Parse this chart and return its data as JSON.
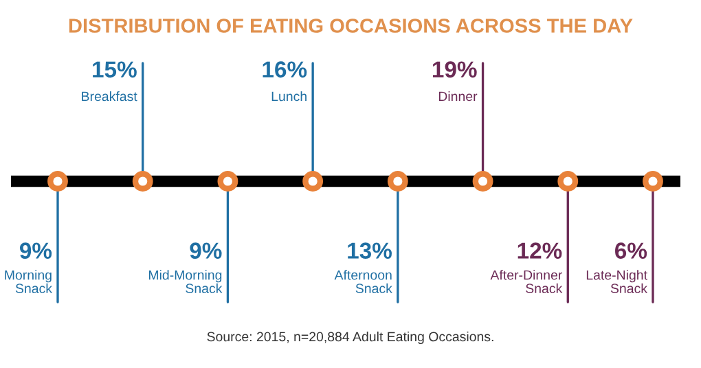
{
  "chart_data": {
    "type": "other",
    "title": "DISTRIBUTION OF EATING OCCASIONS ACROSS THE DAY",
    "categories": [
      "Morning\nSnack",
      "Breakfast",
      "Mid-Morning\nSnack",
      "Lunch",
      "Afternoon\nSnack",
      "Dinner",
      "After-Dinner\nSnack",
      "Late-Night\nSnack"
    ],
    "values": [
      9,
      15,
      9,
      16,
      13,
      19,
      12,
      6
    ],
    "value_labels": [
      "9%",
      "15%",
      "9%",
      "16%",
      "13%",
      "19%",
      "12%",
      "6%"
    ],
    "colors": [
      "#1f6fa3",
      "#1f6fa3",
      "#1f6fa3",
      "#1f6fa3",
      "#1f6fa3",
      "#6b2a55",
      "#6b2a55",
      "#6b2a55"
    ],
    "annotations": [
      "Source: 2015, n=20,884 Adult Eating Occasions."
    ]
  }
}
